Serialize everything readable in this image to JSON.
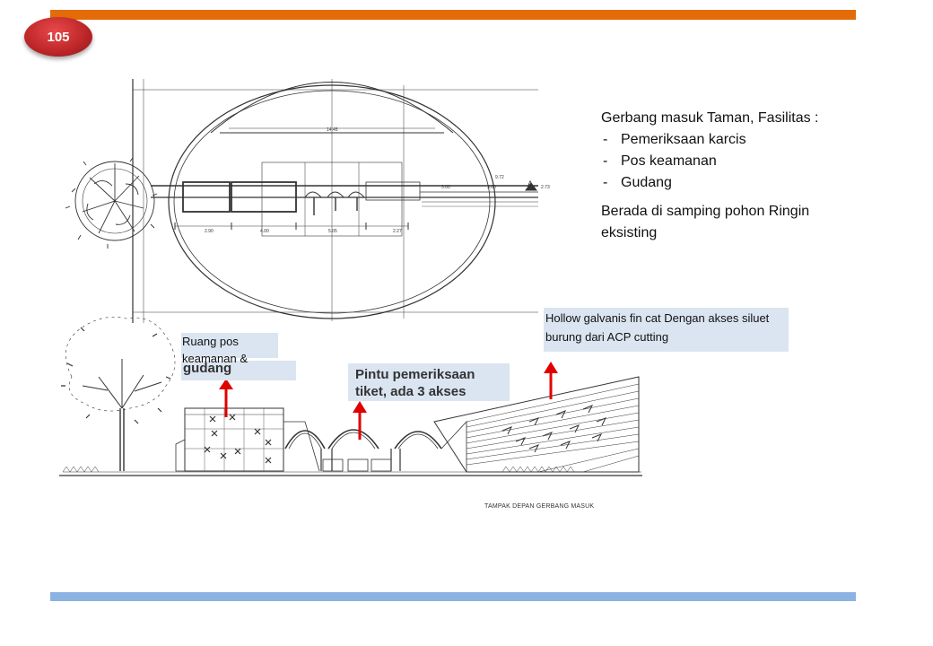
{
  "slide": {
    "page_number": "105",
    "colors": {
      "top_bar": "#e36c09",
      "bottom_bar": "#8db3e2",
      "badge": "#c0282a",
      "label_bg": "#dbe5f1",
      "arrow": "#e00000"
    }
  },
  "info": {
    "title": "Gerbang masuk Taman, Fasilitas :",
    "facilities": [
      "Pemeriksaan karcis",
      "Pos keamanan",
      "Gudang"
    ],
    "note": "Berada di samping pohon Ringin eksisting"
  },
  "plan": {
    "dimensions": [
      "14.45",
      "9.72",
      "3.00",
      "3.00",
      "2.73",
      "2.90",
      "4.00",
      "5.05",
      "2.27"
    ],
    "section_mark": "A"
  },
  "labels": {
    "ruang": "Ruang pos keamanan &",
    "gudang": "gudang",
    "pintu": "Pintu pemeriksaan tiket, ada 3 akses",
    "hollow": "Hollow galvanis fin cat Dengan akses siluet burung dari ACP cutting"
  },
  "caption": "TAMPAK DEPAN GERBANG MASUK"
}
